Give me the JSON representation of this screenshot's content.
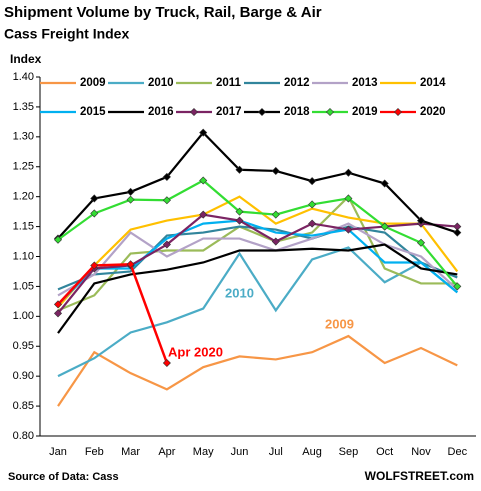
{
  "chart_data": {
    "type": "line",
    "title": "Shipment Volume by Truck, Rail, Barge & Air",
    "subtitle": "Cass Freight Index",
    "y_label": "Index",
    "source": "Source of Data: Cass",
    "brand": "WOLFSTREET.com",
    "categories": [
      "Jan",
      "Feb",
      "Mar",
      "Apr",
      "May",
      "Jun",
      "Jul",
      "Aug",
      "Sep",
      "Oct",
      "Nov",
      "Dec"
    ],
    "ylim": [
      0.8,
      1.4
    ],
    "yticks": [
      {
        "value": 0.8,
        "label": "0.80"
      },
      {
        "value": 0.85,
        "label": "0.85"
      },
      {
        "value": 0.9,
        "label": "0.90"
      },
      {
        "value": 0.95,
        "label": "0.95"
      },
      {
        "value": 1.0,
        "label": "1.00"
      },
      {
        "value": 1.05,
        "label": "1.05"
      },
      {
        "value": 1.1,
        "label": "1.10"
      },
      {
        "value": 1.15,
        "label": "1.15"
      },
      {
        "value": 1.2,
        "label": "1.20"
      },
      {
        "value": 1.25,
        "label": "1.25"
      },
      {
        "value": 1.3,
        "label": "1.30"
      },
      {
        "value": 1.35,
        "label": "1.35"
      },
      {
        "value": 1.4,
        "label": "1.40"
      }
    ],
    "series": [
      {
        "name": "2009",
        "color": "#f79646",
        "values": [
          0.85,
          0.94,
          0.905,
          0.878,
          0.915,
          0.933,
          0.928,
          0.94,
          0.967,
          0.922,
          0.947,
          0.918
        ]
      },
      {
        "name": "2010",
        "color": "#4bacc6",
        "values": [
          0.9,
          0.93,
          0.973,
          0.99,
          1.013,
          1.105,
          1.01,
          1.095,
          1.115,
          1.057,
          1.09,
          1.04
        ]
      },
      {
        "name": "2011",
        "color": "#9bbb59",
        "values": [
          1.01,
          1.035,
          1.105,
          1.11,
          1.11,
          1.15,
          1.125,
          1.14,
          1.2,
          1.08,
          1.055,
          1.055
        ]
      },
      {
        "name": "2012",
        "color": "#31859c",
        "values": [
          1.045,
          1.07,
          1.075,
          1.135,
          1.14,
          1.15,
          1.145,
          1.13,
          1.15,
          1.14,
          1.09,
          1.065
        ]
      },
      {
        "name": "2013",
        "color": "#b3a2c7",
        "values": [
          1.035,
          1.07,
          1.14,
          1.1,
          1.13,
          1.13,
          1.11,
          1.13,
          1.155,
          1.12,
          1.1,
          1.045
        ]
      },
      {
        "name": "2014",
        "color": "#ffc000",
        "values": [
          1.015,
          1.085,
          1.145,
          1.16,
          1.17,
          1.2,
          1.155,
          1.18,
          1.165,
          1.155,
          1.155,
          1.075
        ]
      },
      {
        "name": "2015",
        "color": "#00b0f0",
        "values": [
          1.02,
          1.08,
          1.08,
          1.13,
          1.155,
          1.16,
          1.14,
          1.135,
          1.145,
          1.09,
          1.09,
          1.04
        ]
      },
      {
        "name": "2016",
        "color": "#000000",
        "values": [
          0.972,
          1.055,
          1.07,
          1.078,
          1.09,
          1.11,
          1.11,
          1.113,
          1.11,
          1.12,
          1.08,
          1.07
        ]
      },
      {
        "name": "2017",
        "color": "#7b2463",
        "marker": "diamond",
        "values": [
          1.005,
          1.08,
          1.085,
          1.12,
          1.17,
          1.16,
          1.125,
          1.155,
          1.145,
          1.15,
          1.155,
          1.15
        ]
      },
      {
        "name": "2018",
        "color": "#000000",
        "marker": "diamond",
        "values": [
          1.13,
          1.197,
          1.208,
          1.233,
          1.307,
          1.245,
          1.243,
          1.226,
          1.24,
          1.222,
          1.16,
          1.14
        ]
      },
      {
        "name": "2019",
        "color": "#33dd33",
        "marker": "diamond",
        "values": [
          1.128,
          1.172,
          1.195,
          1.194,
          1.227,
          1.175,
          1.17,
          1.187,
          1.197,
          1.15,
          1.123,
          1.05
        ]
      },
      {
        "name": "2020",
        "color": "#ff0000",
        "marker": "diamond",
        "values": [
          1.02,
          1.085,
          1.087,
          0.922,
          null,
          null,
          null,
          null,
          null,
          null,
          null,
          null
        ]
      }
    ],
    "annotations": [
      {
        "text": "2010",
        "color": "#4bacc6"
      },
      {
        "text": "2009",
        "color": "#f79646"
      },
      {
        "text": "Apr 2020",
        "color": "#ff0000"
      }
    ]
  }
}
